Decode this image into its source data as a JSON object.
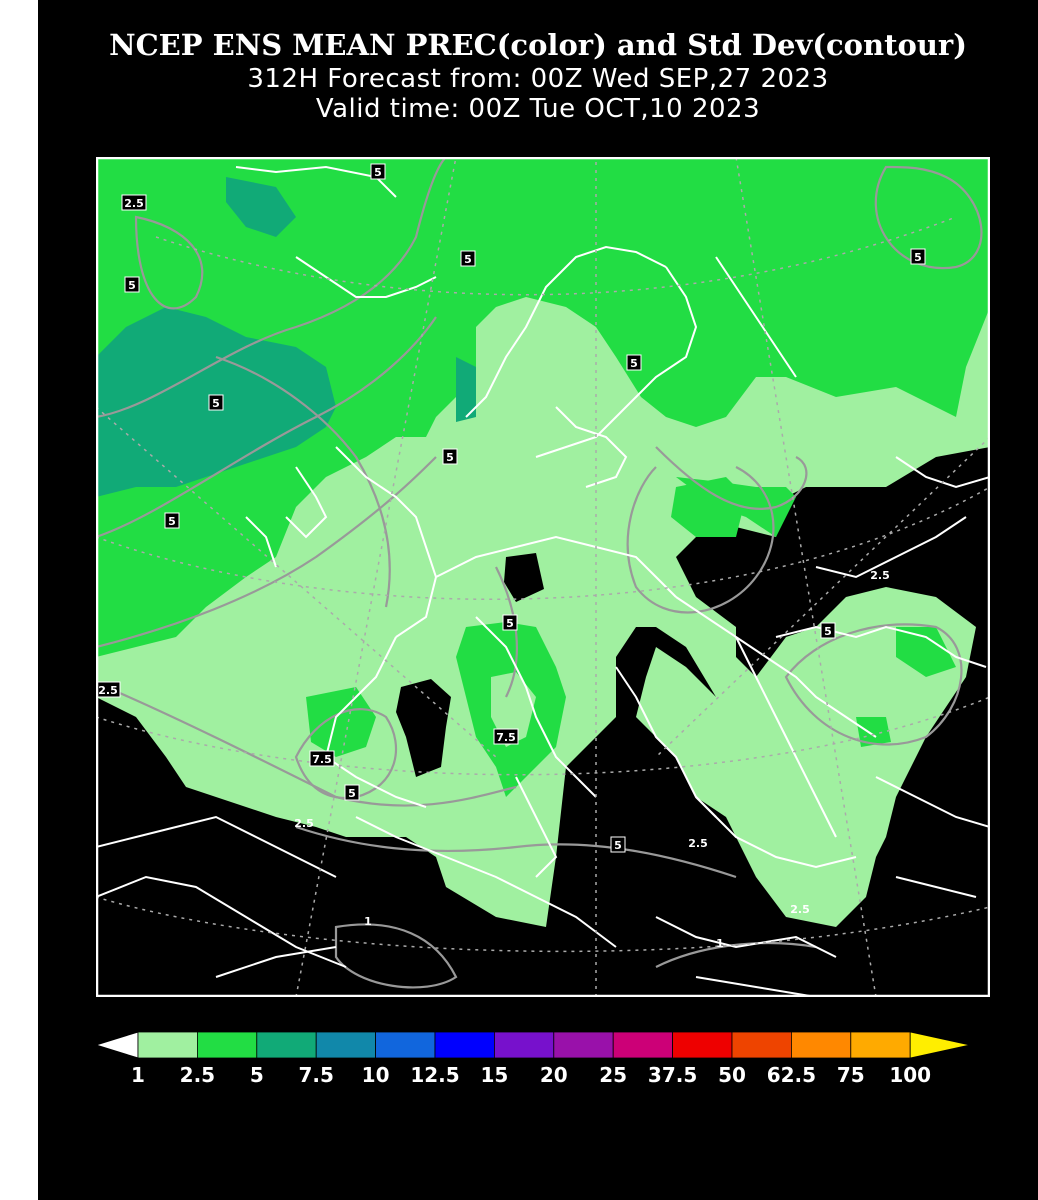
{
  "header": {
    "line1": "NCEP ENS MEAN PREC(color) and Std Dev(contour)",
    "line2": "312H Forecast from: 00Z Wed SEP,27 2023",
    "line3": "Valid time: 00Z Tue OCT,10 2023"
  },
  "map": {
    "region": "Europe",
    "contour_labels": [
      {
        "id": "c1",
        "text": "2.5"
      },
      {
        "id": "c2",
        "text": "5"
      },
      {
        "id": "c3",
        "text": "5"
      },
      {
        "id": "c4",
        "text": "5"
      },
      {
        "id": "c5",
        "text": "5"
      },
      {
        "id": "c6",
        "text": "5"
      },
      {
        "id": "c7",
        "text": "5"
      },
      {
        "id": "c8",
        "text": "5"
      },
      {
        "id": "c9",
        "text": "5"
      },
      {
        "id": "c10",
        "text": "5"
      },
      {
        "id": "c11",
        "text": "2.5"
      },
      {
        "id": "c12",
        "text": "7.5"
      },
      {
        "id": "c13",
        "text": "7.5"
      },
      {
        "id": "c14",
        "text": "5"
      },
      {
        "id": "c15",
        "text": "2.5"
      },
      {
        "id": "c16",
        "text": "5"
      },
      {
        "id": "c17",
        "text": "2.5"
      },
      {
        "id": "c18",
        "text": "5"
      },
      {
        "id": "c19",
        "text": "2.5"
      },
      {
        "id": "c20",
        "text": "1"
      },
      {
        "id": "c21",
        "text": "1"
      },
      {
        "id": "c22",
        "text": "2.5"
      }
    ]
  },
  "legend": {
    "labels": [
      "1",
      "2.5",
      "5",
      "7.5",
      "10",
      "12.5",
      "15",
      "20",
      "25",
      "37.5",
      "50",
      "62.5",
      "75",
      "100"
    ],
    "colors": [
      "#a0f0a0",
      "#22dd44",
      "#11aa77",
      "#1188aa",
      "#1166dd",
      "#0000ff",
      "#7711cc",
      "#9911aa",
      "#cc0077",
      "#ee0000",
      "#ee4400",
      "#ff8800",
      "#ffaa00",
      "#ffee00"
    ],
    "under_color": "#ffffff"
  }
}
